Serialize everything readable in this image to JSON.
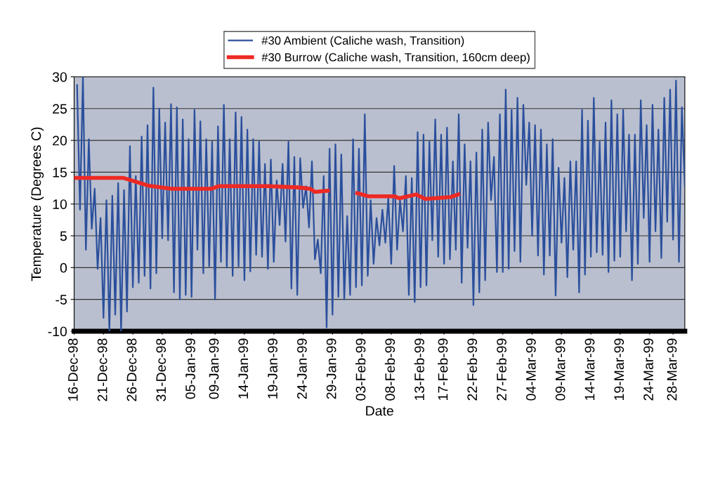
{
  "chart_data": {
    "type": "line",
    "xlabel": "Date",
    "ylabel": "Temperature (Degrees C)",
    "xlim": [
      "1998-12-16T00:00",
      "1999-03-30T00:00"
    ],
    "xticks": [
      {
        "value": "1998-12-16",
        "label": "16-Dec-98"
      },
      {
        "value": "1998-12-21",
        "label": "21-Dec-98"
      },
      {
        "value": "1998-12-26",
        "label": "26-Dec-98"
      },
      {
        "value": "1998-12-31",
        "label": "31-Dec-98"
      },
      {
        "value": "1999-01-05",
        "label": "05-Jan-99"
      },
      {
        "value": "1999-01-09",
        "label": "09-Jan-99"
      },
      {
        "value": "1999-01-14",
        "label": "14-Jan-99"
      },
      {
        "value": "1999-01-19",
        "label": "19-Jan-99"
      },
      {
        "value": "1999-01-24",
        "label": "24-Jan-99"
      },
      {
        "value": "1999-01-29",
        "label": "29-Jan-99"
      },
      {
        "value": "1999-02-03",
        "label": "03-Feb-99"
      },
      {
        "value": "1999-02-08",
        "label": "08-Feb-99"
      },
      {
        "value": "1999-02-13",
        "label": "13-Feb-99"
      },
      {
        "value": "1999-02-17",
        "label": "17-Feb-99"
      },
      {
        "value": "1999-02-22",
        "label": "22-Feb-99"
      },
      {
        "value": "1999-02-27",
        "label": "27-Feb-99"
      },
      {
        "value": "1999-03-04",
        "label": "04-Mar-99"
      },
      {
        "value": "1999-03-09",
        "label": "09-Mar-99"
      },
      {
        "value": "1999-03-14",
        "label": "14-Mar-99"
      },
      {
        "value": "1999-03-19",
        "label": "19-Mar-99"
      },
      {
        "value": "1999-03-24",
        "label": "24-Mar-99"
      },
      {
        "value": "1999-03-28",
        "label": "28-Mar-99"
      }
    ],
    "ylim": [
      -10,
      30
    ],
    "yticks": [
      -10,
      -5,
      0,
      5,
      10,
      15,
      20,
      25,
      30
    ],
    "grid": "y",
    "legend": "top",
    "marker": "none",
    "line_style": "solid",
    "series": [
      {
        "name": "#30 Ambient (Caliche wash, Transition)",
        "color": "#2b4f9c",
        "x": [
          "1998-12-16T12:00",
          "1998-12-17T00:00",
          "1998-12-17T12:00",
          "1998-12-18T00:00",
          "1998-12-18T12:00",
          "1998-12-19T00:00",
          "1998-12-19T12:00",
          "1998-12-20T00:00",
          "1998-12-20T12:00",
          "1998-12-21T00:00",
          "1998-12-21T12:00",
          "1998-12-22T00:00",
          "1998-12-22T12:00",
          "1998-12-23T00:00",
          "1998-12-23T12:00",
          "1998-12-24T00:00",
          "1998-12-24T12:00",
          "1998-12-25T00:00",
          "1998-12-25T12:00",
          "1998-12-26T00:00",
          "1998-12-26T12:00",
          "1998-12-27T00:00",
          "1998-12-27T12:00",
          "1998-12-28T00:00",
          "1998-12-28T12:00",
          "1998-12-29T00:00",
          "1998-12-29T12:00",
          "1998-12-30T00:00",
          "1998-12-30T12:00",
          "1998-12-31T00:00",
          "1998-12-31T12:00",
          "1999-01-01T00:00",
          "1999-01-01T12:00",
          "1999-01-02T00:00",
          "1999-01-02T12:00",
          "1999-01-03T00:00",
          "1999-01-03T12:00",
          "1999-01-04T00:00",
          "1999-01-04T12:00",
          "1999-01-05T00:00",
          "1999-01-05T12:00",
          "1999-01-06T00:00",
          "1999-01-06T12:00",
          "1999-01-07T00:00",
          "1999-01-07T12:00",
          "1999-01-08T00:00",
          "1999-01-08T12:00",
          "1999-01-09T00:00",
          "1999-01-09T12:00",
          "1999-01-10T00:00",
          "1999-01-10T12:00",
          "1999-01-11T00:00",
          "1999-01-11T12:00",
          "1999-01-12T00:00",
          "1999-01-12T12:00",
          "1999-01-13T00:00",
          "1999-01-13T12:00",
          "1999-01-14T00:00",
          "1999-01-14T12:00",
          "1999-01-15T00:00",
          "1999-01-15T12:00",
          "1999-01-16T00:00",
          "1999-01-16T12:00",
          "1999-01-17T00:00",
          "1999-01-17T12:00",
          "1999-01-18T00:00",
          "1999-01-18T12:00",
          "1999-01-19T00:00",
          "1999-01-19T12:00",
          "1999-01-20T00:00",
          "1999-01-20T12:00",
          "1999-01-21T00:00",
          "1999-01-21T12:00",
          "1999-01-22T00:00",
          "1999-01-22T12:00",
          "1999-01-23T00:00",
          "1999-01-23T12:00",
          "1999-01-24T00:00",
          "1999-01-24T12:00",
          "1999-01-25T00:00",
          "1999-01-25T12:00",
          "1999-01-26T00:00",
          "1999-01-26T12:00",
          "1999-01-27T00:00",
          "1999-01-27T12:00",
          "1999-01-28T00:00",
          "1999-01-28T12:00",
          "1999-01-29T00:00",
          "1999-01-29T12:00",
          "1999-01-30T00:00",
          "1999-01-30T12:00",
          "1999-01-31T00:00",
          "1999-01-31T12:00",
          "1999-02-01T00:00",
          "1999-02-01T12:00",
          "1999-02-02T00:00",
          "1999-02-02T12:00",
          "1999-02-03T00:00",
          "1999-02-03T12:00",
          "1999-02-04T00:00",
          "1999-02-04T12:00",
          "1999-02-05T00:00",
          "1999-02-05T12:00",
          "1999-02-06T00:00",
          "1999-02-06T12:00",
          "1999-02-07T00:00",
          "1999-02-07T12:00",
          "1999-02-08T00:00",
          "1999-02-08T12:00",
          "1999-02-09T00:00",
          "1999-02-09T12:00",
          "1999-02-10T00:00",
          "1999-02-10T12:00",
          "1999-02-11T00:00",
          "1999-02-11T12:00",
          "1999-02-12T00:00",
          "1999-02-12T12:00",
          "1999-02-13T00:00",
          "1999-02-13T12:00",
          "1999-02-14T00:00",
          "1999-02-14T12:00",
          "1999-02-15T00:00",
          "1999-02-15T12:00",
          "1999-02-16T00:00",
          "1999-02-16T12:00",
          "1999-02-17T00:00",
          "1999-02-17T12:00",
          "1999-02-18T00:00",
          "1999-02-18T12:00",
          "1999-02-19T00:00",
          "1999-02-19T12:00",
          "1999-02-20T00:00",
          "1999-02-20T12:00",
          "1999-02-21T00:00",
          "1999-02-21T12:00",
          "1999-02-22T00:00",
          "1999-02-22T12:00",
          "1999-02-23T00:00",
          "1999-02-23T12:00",
          "1999-02-24T00:00",
          "1999-02-24T12:00",
          "1999-02-25T00:00",
          "1999-02-25T12:00",
          "1999-02-26T00:00",
          "1999-02-26T12:00",
          "1999-02-27T00:00",
          "1999-02-27T12:00",
          "1999-02-28T00:00",
          "1999-02-28T12:00",
          "1999-03-01T00:00",
          "1999-03-01T12:00",
          "1999-03-02T00:00",
          "1999-03-02T12:00",
          "1999-03-03T00:00",
          "1999-03-03T12:00",
          "1999-03-04T00:00",
          "1999-03-04T12:00",
          "1999-03-05T00:00",
          "1999-03-05T12:00",
          "1999-03-06T00:00",
          "1999-03-06T12:00",
          "1999-03-07T00:00",
          "1999-03-07T12:00",
          "1999-03-08T00:00",
          "1999-03-08T12:00",
          "1999-03-09T00:00",
          "1999-03-09T12:00",
          "1999-03-10T00:00",
          "1999-03-10T12:00",
          "1999-03-11T00:00",
          "1999-03-11T12:00",
          "1999-03-12T00:00",
          "1999-03-12T12:00",
          "1999-03-13T00:00",
          "1999-03-13T12:00",
          "1999-03-14T00:00",
          "1999-03-14T12:00",
          "1999-03-15T00:00",
          "1999-03-15T12:00",
          "1999-03-16T00:00",
          "1999-03-16T12:00",
          "1999-03-17T00:00",
          "1999-03-17T12:00",
          "1999-03-18T00:00",
          "1999-03-18T12:00",
          "1999-03-19T00:00",
          "1999-03-19T12:00",
          "1999-03-20T00:00",
          "1999-03-20T12:00",
          "1999-03-21T00:00",
          "1999-03-21T12:00",
          "1999-03-22T00:00",
          "1999-03-22T12:00",
          "1999-03-23T00:00",
          "1999-03-23T12:00",
          "1999-03-24T00:00",
          "1999-03-24T12:00",
          "1999-03-25T00:00",
          "1999-03-25T12:00",
          "1999-03-26T00:00",
          "1999-03-26T12:00",
          "1999-03-27T00:00",
          "1999-03-27T12:00",
          "1999-03-28T00:00",
          "1999-03-28T12:00",
          "1999-03-29T00:00",
          "1999-03-29T12:00",
          "1999-03-30T00:00"
        ],
        "values": [
          28.7,
          9.1,
          30,
          2.8,
          20.2,
          6.1,
          12.4,
          -0.2,
          7.8,
          -7.9,
          10.6,
          -10,
          11.3,
          -7.4,
          13.3,
          -10,
          12.2,
          -6.9,
          19.1,
          -3.1,
          14.4,
          -2.4,
          20.6,
          -1.3,
          22.4,
          -3.3,
          28.3,
          -0.9,
          25,
          4.6,
          22.8,
          4.3,
          25.7,
          -3.9,
          25.2,
          -5,
          23.3,
          -4.3,
          20.2,
          -4.6,
          24.8,
          2.8,
          23,
          -0.9,
          20.2,
          0.2,
          19.8,
          -5,
          22.2,
          0.9,
          25.6,
          0,
          20.2,
          -1.3,
          24.4,
          0.2,
          23.7,
          -2,
          21.7,
          -0.6,
          20.2,
          2,
          19.8,
          1.7,
          16.3,
          -0.2,
          17,
          0.9,
          13.7,
          6.7,
          16.3,
          4.1,
          19.8,
          -3.3,
          17.4,
          -4.3,
          17.2,
          9.4,
          12.8,
          6.3,
          16.7,
          1.3,
          4.4,
          -0.9,
          14.4,
          -9.4,
          18.7,
          -7.4,
          19.4,
          -4.6,
          17.8,
          -5,
          8.1,
          -4.3,
          20.2,
          -3.1,
          18.7,
          -2.8,
          24.1,
          -1.3,
          10.6,
          0.6,
          7.8,
          3.5,
          9.1,
          3.9,
          11,
          0.6,
          16,
          2.8,
          10.6,
          5.7,
          14.4,
          -4.3,
          14.1,
          -5.4,
          21.3,
          -3.1,
          20.9,
          -2.8,
          19.8,
          4.3,
          23.3,
          1.7,
          20.9,
          0.6,
          22,
          1.3,
          16.7,
          2.8,
          24.1,
          -2.4,
          19.4,
          3.1,
          16.7,
          -5.9,
          18.1,
          -3.9,
          21.7,
          -2,
          22.8,
          10.6,
          17.4,
          -0.7,
          24.1,
          -0.7,
          28,
          -0.2,
          24.8,
          2.6,
          26.7,
          0.9,
          25.6,
          13,
          22.8,
          5,
          22.4,
          1.9,
          21.7,
          -1.1,
          19.4,
          1.9,
          20.2,
          -4.4,
          15.7,
          3.9,
          14.1,
          -1.5,
          16.7,
          2.8,
          16.7,
          -3.9,
          24.8,
          -1.1,
          23.1,
          1.7,
          26.7,
          2.4,
          19.8,
          2,
          22.8,
          -0.7,
          26.3,
          1.1,
          24.1,
          1.7,
          24.8,
          5.7,
          20.9,
          -2,
          20.9,
          0.6,
          26.3,
          7.8,
          22.4,
          0.9,
          25.6,
          5.7,
          21.7,
          1.5,
          26.7,
          7.2,
          28,
          4.4,
          29.4,
          0.9,
          25.2,
          12.8
        ]
      },
      {
        "name": "#30 Burrow (Caliche wash, Transition, 160cm deep)",
        "color": "#ee2a24",
        "x": [
          "1998-12-16T00:00",
          "1998-12-24T10:00",
          "1998-12-28T14:00",
          "1999-01-01T14:00",
          "1999-01-08T10:00",
          "1999-01-09T14:00",
          "1999-01-18T00:00",
          "1999-01-23T05:00",
          "1999-01-25T05:00",
          "1999-01-26T00:00",
          "1999-01-28T05:00",
          "1999-01-30T00:00",
          "1999-02-02T05:00",
          "1999-02-04T05:00",
          "1999-02-08T14:00",
          "1999-02-09T10:00",
          "1999-02-12T05:00",
          "1999-02-13T19:00",
          "1999-02-18T05:00",
          "1999-02-19T10:00"
        ],
        "values": [
          14.1,
          14.1,
          12.9,
          12.4,
          12.4,
          12.8,
          12.8,
          12.6,
          12.4,
          11.9,
          12.1,
          null,
          11.7,
          11.2,
          11.2,
          10.9,
          11.5,
          10.8,
          11.1,
          11.5
        ]
      }
    ]
  }
}
